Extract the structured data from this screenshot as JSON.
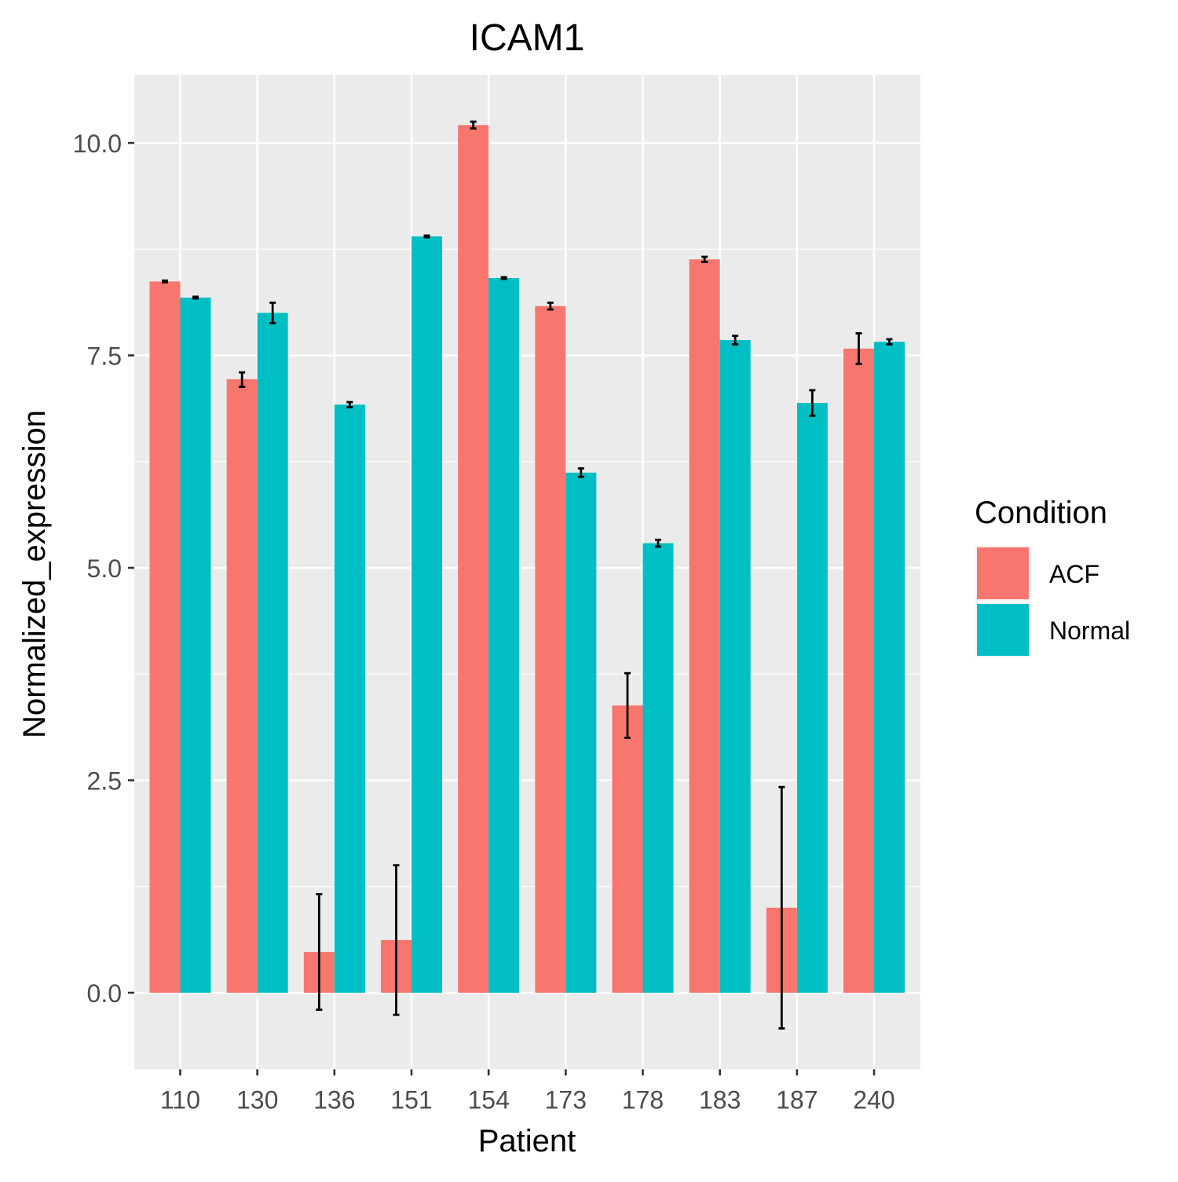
{
  "chart_data": {
    "type": "bar",
    "title": "ICAM1",
    "xlabel": "Patient",
    "ylabel": "Normalized_expression",
    "categories": [
      "110",
      "130",
      "136",
      "151",
      "154",
      "173",
      "178",
      "183",
      "187",
      "240"
    ],
    "series": [
      {
        "name": "ACF",
        "color": "#F8766D",
        "values": [
          8.37,
          7.22,
          0.48,
          0.62,
          10.21,
          8.08,
          3.38,
          8.63,
          1.0,
          7.58
        ],
        "err_low": [
          8.36,
          7.13,
          -0.2,
          -0.26,
          10.17,
          8.04,
          3.0,
          8.6,
          -0.42,
          7.4
        ],
        "err_high": [
          8.38,
          7.3,
          1.16,
          1.5,
          10.25,
          8.12,
          3.76,
          8.66,
          2.42,
          7.76
        ]
      },
      {
        "name": "Normal",
        "color": "#00BFC4",
        "values": [
          8.18,
          8.0,
          6.92,
          8.9,
          8.41,
          6.12,
          5.29,
          7.68,
          6.94,
          7.66
        ],
        "err_low": [
          8.17,
          7.88,
          6.89,
          8.89,
          8.4,
          6.07,
          5.25,
          7.63,
          6.79,
          7.63
        ],
        "err_high": [
          8.19,
          8.12,
          6.95,
          8.91,
          8.42,
          6.17,
          5.33,
          7.73,
          7.09,
          7.69
        ]
      }
    ],
    "ylim": [
      -0.9,
      10.8
    ],
    "yticks": [
      0.0,
      2.5,
      5.0,
      7.5,
      10.0
    ],
    "ytick_labels": [
      "0.0",
      "2.5",
      "5.0",
      "7.5",
      "10.0"
    ],
    "grid": true,
    "legend": {
      "title": "Condition",
      "position": "right",
      "entries": [
        "ACF",
        "Normal"
      ]
    },
    "panel_color": "#EBEBEB"
  }
}
